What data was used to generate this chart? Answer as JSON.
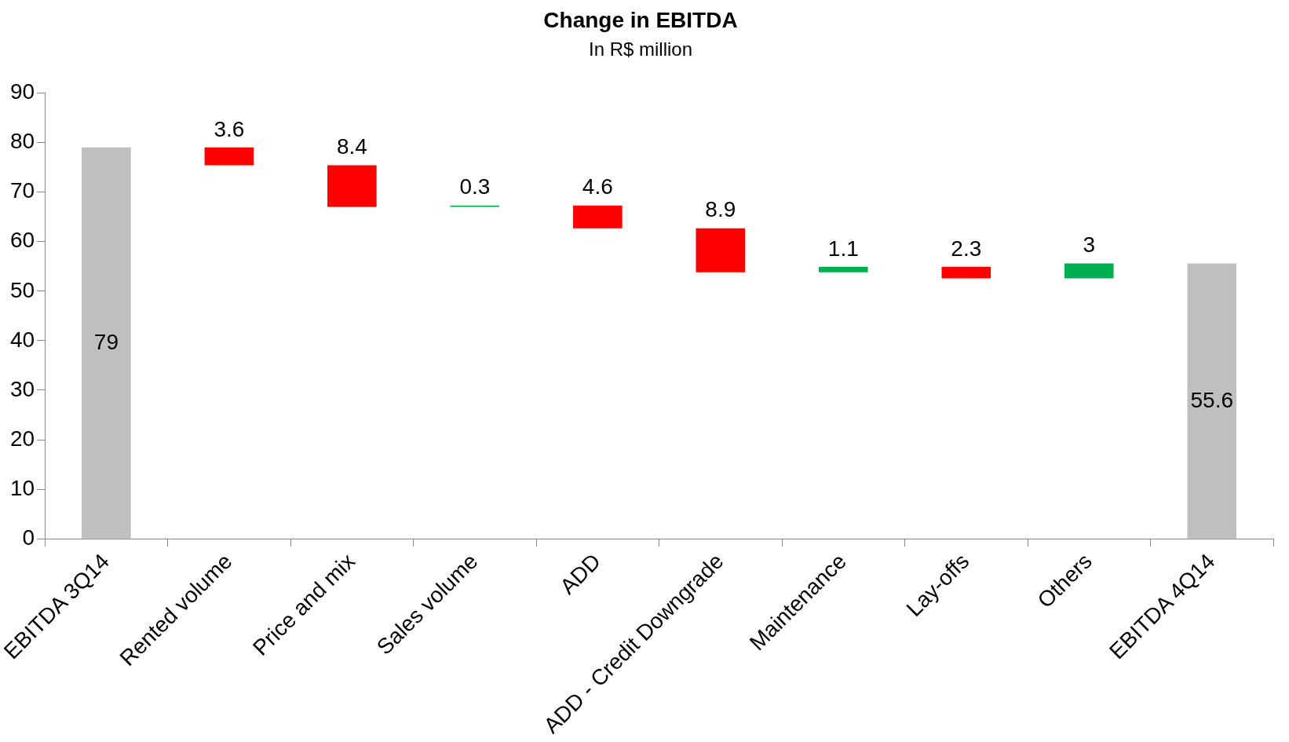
{
  "chart_data": {
    "type": "bar",
    "title": "Change in EBITDA",
    "subtitle": "In R$ million",
    "categories": [
      "EBITDA 3Q14",
      "Rented volume",
      "Price and mix",
      "Sales volume",
      "ADD",
      "ADD - Credit Downgrade",
      "Maintenance",
      "Lay-offs",
      "Others",
      "EBITDA 4Q14"
    ],
    "values": [
      79,
      3.6,
      8.4,
      0.3,
      4.6,
      8.9,
      1.1,
      2.3,
      3,
      55.6
    ],
    "base": [
      0,
      75.4,
      67,
      67,
      62.7,
      53.8,
      53.8,
      52.6,
      52.6,
      0
    ],
    "colors": [
      "#bfbfbf",
      "#ff0000",
      "#ff0000",
      "#00b050",
      "#ff0000",
      "#ff0000",
      "#00b050",
      "#ff0000",
      "#00b050",
      "#bfbfbf"
    ],
    "ylim": [
      0,
      90
    ],
    "yticks": [
      0,
      10,
      20,
      30,
      40,
      50,
      60,
      70,
      80,
      90
    ],
    "data_labels": true
  }
}
